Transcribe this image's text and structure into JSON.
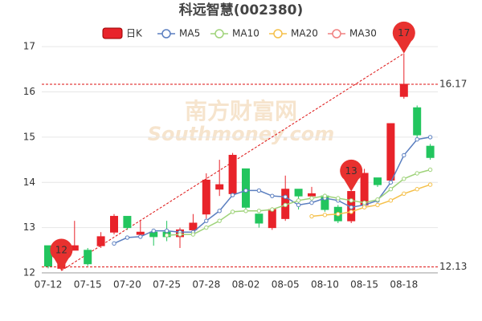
{
  "chart_data": {
    "type": "candlestick",
    "title": "科远智慧(002380)",
    "watermark": [
      "南方财富网",
      "Southmoney.com"
    ],
    "categories": [
      "07-12",
      null,
      null,
      "07-15",
      null,
      null,
      "07-20",
      null,
      null,
      "07-25",
      null,
      null,
      "07-28",
      null,
      null,
      "08-02",
      null,
      null,
      "08-05",
      null,
      null,
      "08-10",
      null,
      null,
      "08-15",
      null,
      null,
      "08-18",
      null,
      null
    ],
    "candles": {
      "name": "日K",
      "up_color": "#e8232a",
      "down_color": "#22c55e",
      "open": [
        12.6,
        12.1,
        12.5,
        12.5,
        12.6,
        12.9,
        13.25,
        12.85,
        12.9,
        12.9,
        12.8,
        12.95,
        13.3,
        13.85,
        13.75,
        14.3,
        13.3,
        13.0,
        13.2,
        13.85,
        13.7,
        13.7,
        13.45,
        13.15,
        13.5,
        14.1,
        14.05,
        15.9,
        15.65,
        14.8
      ],
      "close": [
        12.15,
        12.6,
        12.6,
        12.2,
        12.8,
        13.25,
        13.0,
        12.9,
        12.8,
        12.8,
        12.95,
        13.1,
        14.05,
        13.95,
        14.6,
        13.45,
        13.1,
        13.4,
        13.85,
        13.7,
        13.75,
        13.4,
        13.15,
        13.8,
        14.2,
        13.95,
        15.3,
        16.17,
        15.05,
        14.55
      ],
      "high": [
        12.6,
        12.65,
        13.15,
        12.55,
        12.9,
        13.3,
        13.25,
        13.15,
        12.95,
        13.15,
        13.0,
        13.3,
        14.2,
        14.5,
        14.65,
        14.3,
        13.3,
        13.45,
        14.15,
        13.85,
        13.9,
        13.75,
        13.5,
        13.8,
        14.3,
        14.1,
        15.3,
        16.85,
        15.7,
        14.85
      ],
      "low": [
        12.1,
        12.05,
        12.5,
        12.15,
        12.55,
        12.85,
        12.95,
        12.8,
        12.6,
        12.7,
        12.55,
        12.9,
        13.2,
        13.7,
        13.7,
        13.4,
        13.0,
        12.95,
        13.15,
        13.4,
        13.65,
        13.35,
        13.1,
        13.1,
        13.45,
        13.9,
        14.0,
        15.85,
        15.0,
        14.5
      ]
    },
    "series": [
      {
        "name": "MA5",
        "color": "#5b7fc0",
        "values": [
          null,
          null,
          null,
          null,
          null,
          12.65,
          12.78,
          12.8,
          12.93,
          12.93,
          12.9,
          12.9,
          13.15,
          13.37,
          13.72,
          13.82,
          13.82,
          13.7,
          13.68,
          13.5,
          13.55,
          13.65,
          13.6,
          13.45,
          13.5,
          13.6,
          14.0,
          14.6,
          14.95,
          15.0
        ]
      },
      {
        "name": "MA10",
        "color": "#9fd37a",
        "values": [
          null,
          null,
          null,
          null,
          null,
          null,
          null,
          null,
          null,
          12.83,
          12.85,
          12.85,
          13.0,
          13.15,
          13.35,
          13.37,
          13.37,
          13.4,
          13.5,
          13.6,
          13.65,
          13.7,
          13.65,
          13.6,
          13.55,
          13.62,
          13.85,
          14.08,
          14.2,
          14.28
        ]
      },
      {
        "name": "MA20",
        "color": "#f5c04a",
        "values": [
          null,
          null,
          null,
          null,
          null,
          null,
          null,
          null,
          null,
          null,
          null,
          null,
          null,
          null,
          null,
          null,
          null,
          null,
          null,
          null,
          13.25,
          13.28,
          13.3,
          13.35,
          13.45,
          13.5,
          13.6,
          13.75,
          13.85,
          13.95
        ]
      },
      {
        "name": "MA30",
        "color": "#f08080",
        "values": [
          null,
          null,
          null,
          null,
          null,
          null,
          null,
          null,
          null,
          null,
          null,
          null,
          null,
          null,
          null,
          null,
          null,
          null,
          null,
          null,
          null,
          null,
          null,
          null,
          null,
          null,
          null,
          null,
          null,
          null
        ]
      }
    ],
    "ylim": [
      12,
      17.5
    ],
    "yticks": [
      12,
      13,
      14,
      15,
      16,
      17
    ],
    "grid": true,
    "reference_lines": [
      16.17,
      12.13
    ],
    "pins": [
      {
        "index": 27,
        "value": 17
      },
      {
        "index": 1,
        "value": 12
      },
      {
        "index": 23,
        "value": 13
      }
    ]
  }
}
